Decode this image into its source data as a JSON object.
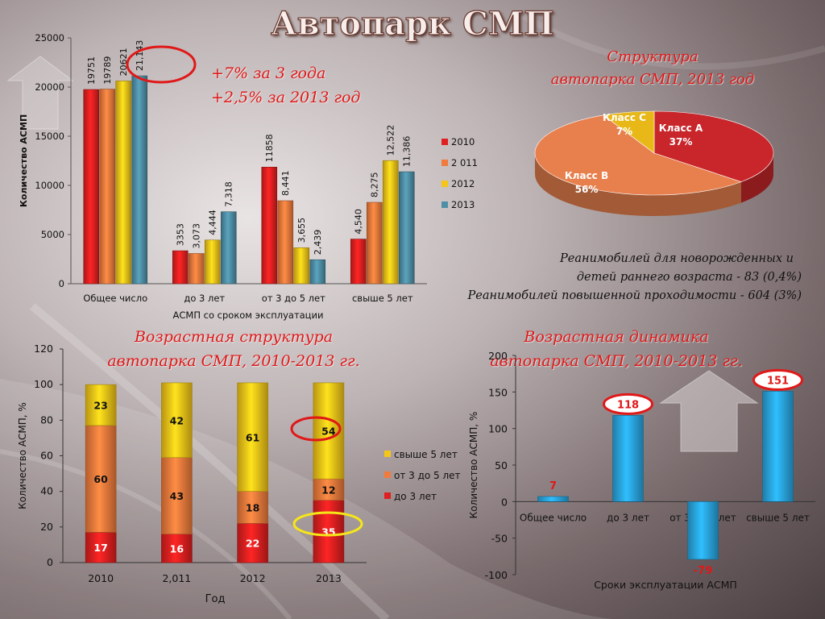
{
  "page": {
    "title": "Автопарк СМП",
    "growth_line1": "+7% за 3 года",
    "growth_line2": "+2,5% за 2013 год",
    "pie_title1": "Структура",
    "pie_title2": "автопарка СМП, 2013 год",
    "reanim_line1": "Реанимобилей для новорожденных и",
    "reanim_line2": "детей раннего возраста - 83 (0,4%)",
    "reanim_line3": "Реанимобилей повышенной проходимости -  604 (3%)",
    "stack_title1": "Возрастная структура",
    "stack_title2": "автопарка СМП,  2010-2013 гг.",
    "dyn_title1": "Возрастная  динамика",
    "dyn_title2": "автопарка СМП,  2010-2013 гг."
  },
  "chart_data": [
    {
      "type": "bar",
      "xlabel": "АСМП со сроком эксплуатации",
      "ylabel": "Количество АСМП",
      "ylim": [
        0,
        25000
      ],
      "yticks": [
        "0",
        "5000",
        "10000",
        "15000",
        "20000",
        "25000"
      ],
      "categories": [
        "Общее число",
        "до 3 лет",
        "от  3 до 5 лет",
        "свыше 5 лет"
      ],
      "series": [
        {
          "name": "2010",
          "color": "#e02020",
          "values": [
            19751,
            3353,
            11858,
            4540
          ],
          "labels": [
            "19751",
            "3353",
            "11858",
            "4,540"
          ]
        },
        {
          "name": "2 011",
          "color": "#f07b3c",
          "values": [
            19789,
            3073,
            8441,
            8275
          ],
          "labels": [
            "19789",
            "3,073",
            "8,441",
            "8,275"
          ]
        },
        {
          "name": "2012",
          "color": "#f5c518",
          "values": [
            20621,
            4444,
            3655,
            12522
          ],
          "labels": [
            "20621",
            "4,444",
            "3,655",
            "12,522"
          ]
        },
        {
          "name": "2013",
          "color": "#4f8fa6",
          "values": [
            21143,
            7318,
            2439,
            11386
          ],
          "labels": [
            "21,143",
            "7,318",
            "2,439",
            "11,386"
          ]
        }
      ],
      "legend_position": "right"
    },
    {
      "type": "pie",
      "slices": [
        {
          "label": "Класс А",
          "value": 37,
          "value_label": "37%",
          "color": "#c8262b"
        },
        {
          "label": "Класс В",
          "value": 56,
          "value_label": "56%",
          "color": "#e8804e"
        },
        {
          "label": "Класс С",
          "value": 7,
          "value_label": "7%",
          "color": "#e8b818"
        }
      ]
    },
    {
      "type": "bar",
      "stacked": true,
      "xlabel": "Год",
      "ylabel": "Количество АСМП, %",
      "ylim": [
        0,
        120
      ],
      "yticks": [
        "0",
        "20",
        "40",
        "60",
        "80",
        "100",
        "120"
      ],
      "categories": [
        "2010",
        "2,011",
        "2012",
        "2013"
      ],
      "series": [
        {
          "name": "до 3 лет",
          "color": "#e02020",
          "values": [
            17,
            16,
            22,
            35
          ]
        },
        {
          "name": "от  3 до 5 лет",
          "color": "#f07b3c",
          "values": [
            60,
            43,
            18,
            12
          ]
        },
        {
          "name": "свыше 5 лет",
          "color": "#f5c518",
          "values": [
            23,
            42,
            61,
            54
          ]
        }
      ],
      "legend_order": [
        "свыше 5 лет",
        "от  3 до 5 лет",
        "до 3 лет"
      ],
      "legend_position": "right"
    },
    {
      "type": "bar",
      "xlabel": "Сроки эксплуатации АСМП",
      "ylabel": "Количество АСМП, %",
      "ylim": [
        -100,
        200
      ],
      "yticks": [
        "-100",
        "-50",
        "0",
        "50",
        "100",
        "150",
        "200"
      ],
      "categories": [
        "Общее число",
        "до 3 лет",
        "от  3 до 5 лет",
        "свыше 5 лет"
      ],
      "values": [
        7,
        118,
        -79,
        151
      ],
      "value_labels": [
        "7",
        "118",
        "-79",
        "151"
      ],
      "color": "#2aa6e0"
    }
  ]
}
